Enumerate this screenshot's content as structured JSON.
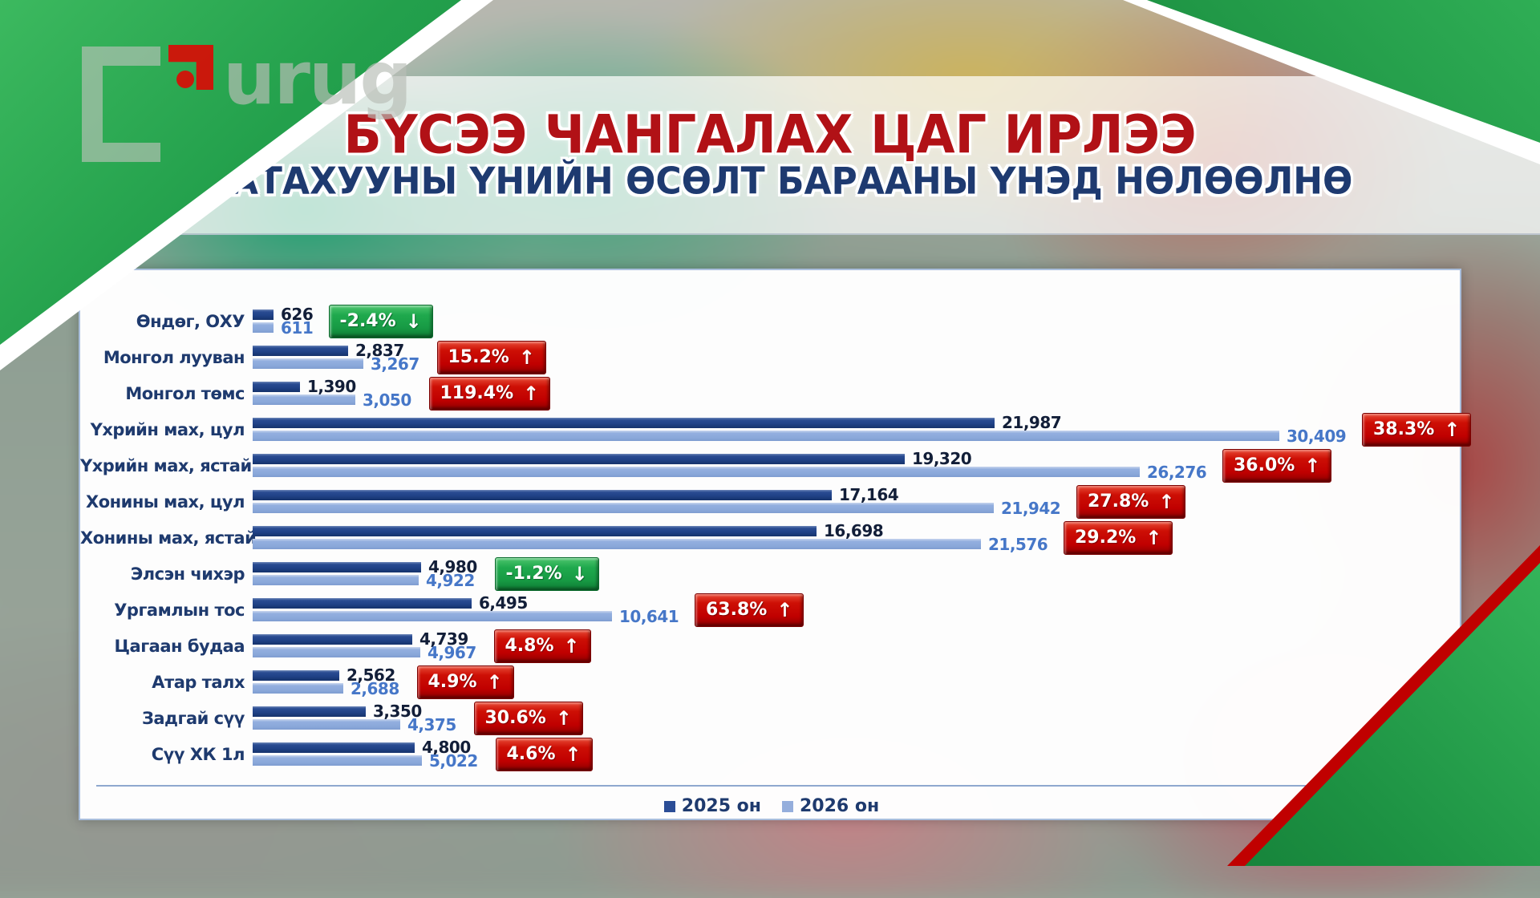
{
  "logo": {
    "text": "urug"
  },
  "title": {
    "line1": "БҮСЭЭ ЧАНГАЛАХ ЦАГ ИРЛЭЭ",
    "line2": "ШАТАХУУНЫ ҮНИЙН ӨСӨЛТ БАРААНЫ ҮНЭД НӨЛӨӨЛНӨ"
  },
  "colors": {
    "title_red": "#b11116",
    "subtitle_navy": "#1e3a70",
    "bar_2025": "#1f4186",
    "bar_2026": "#8aa8da",
    "value_2025_text": "#121e38",
    "value_2026_text": "#4677c8",
    "badge_increase": "#c00000",
    "badge_decrease": "#1fa94d",
    "corner_green": "#23a04c",
    "corner_red_stripe": "#c00000"
  },
  "chart_data": {
    "type": "bar",
    "orientation": "horizontal",
    "title": "",
    "xlabel": "",
    "ylabel": "",
    "xlim": [
      0,
      30409
    ],
    "grid": false,
    "legend_position": "bottom",
    "categories": [
      "Өндөг, ОХУ",
      "Монгол лууван",
      "Монгол төмс",
      "Үхрийн мах, цул",
      "Үхрийн мах, ястай",
      "Хонины мах, цул",
      "Хонины мах, ястай",
      "Элсэн чихэр",
      "Ургамлын тос",
      "Цагаан будаа",
      "Атар талх",
      "Задгай сүү",
      "Сүү ХК 1л"
    ],
    "series": [
      {
        "name": "2025 он",
        "color": "#1f4186",
        "values": [
          626,
          2837,
          1390,
          21987,
          19320,
          17164,
          16698,
          4980,
          6495,
          4739,
          2562,
          3350,
          4800
        ]
      },
      {
        "name": "2026 он",
        "color": "#8aa8da",
        "values": [
          611,
          3267,
          3050,
          30409,
          26276,
          21942,
          21576,
          4922,
          10641,
          4967,
          2688,
          4375,
          5022
        ]
      }
    ],
    "rows": [
      {
        "label": "Өндөг, ОХУ",
        "v2025": 626,
        "v2026": 611,
        "d2025": "626",
        "d2026": "611",
        "pct": "-2.4%",
        "dir": "down"
      },
      {
        "label": "Монгол лууван",
        "v2025": 2837,
        "v2026": 3267,
        "d2025": "2,837",
        "d2026": "3,267",
        "pct": "15.2%",
        "dir": "up"
      },
      {
        "label": "Монгол төмс",
        "v2025": 1390,
        "v2026": 3050,
        "d2025": "1,390",
        "d2026": "3,050",
        "pct": "119.4%",
        "dir": "up"
      },
      {
        "label": "Үхрийн мах, цул",
        "v2025": 21987,
        "v2026": 30409,
        "d2025": "21,987",
        "d2026": "30,409",
        "pct": "38.3%",
        "dir": "up"
      },
      {
        "label": "Үхрийн мах, ястай",
        "v2025": 19320,
        "v2026": 26276,
        "d2025": "19,320",
        "d2026": "26,276",
        "pct": "36.0%",
        "dir": "up"
      },
      {
        "label": "Хонины мах, цул",
        "v2025": 17164,
        "v2026": 21942,
        "d2025": "17,164",
        "d2026": "21,942",
        "pct": "27.8%",
        "dir": "up"
      },
      {
        "label": "Хонины мах, ястай",
        "v2025": 16698,
        "v2026": 21576,
        "d2025": "16,698",
        "d2026": "21,576",
        "pct": "29.2%",
        "dir": "up"
      },
      {
        "label": "Элсэн чихэр",
        "v2025": 4980,
        "v2026": 4922,
        "d2025": "4,980",
        "d2026": "4,922",
        "pct": "-1.2%",
        "dir": "down"
      },
      {
        "label": "Ургамлын тос",
        "v2025": 6495,
        "v2026": 10641,
        "d2025": "6,495",
        "d2026": "10,641",
        "pct": "63.8%",
        "dir": "up"
      },
      {
        "label": "Цагаан будаа",
        "v2025": 4739,
        "v2026": 4967,
        "d2025": "4,739",
        "d2026": "4,967",
        "pct": "4.8%",
        "dir": "up"
      },
      {
        "label": "Атар талх",
        "v2025": 2562,
        "v2026": 2688,
        "d2025": "2,562",
        "d2026": "2,688",
        "pct": "4.9%",
        "dir": "up"
      },
      {
        "label": "Задгай сүү",
        "v2025": 3350,
        "v2026": 4375,
        "d2025": "3,350",
        "d2026": "4,375",
        "pct": "30.6%",
        "dir": "up"
      },
      {
        "label": "Сүү ХК 1л",
        "v2025": 4800,
        "v2026": 5022,
        "d2025": "4,800",
        "d2026": "5,022",
        "pct": "4.6%",
        "dir": "up"
      }
    ],
    "legend": [
      "2025 он",
      "2026 он"
    ]
  }
}
